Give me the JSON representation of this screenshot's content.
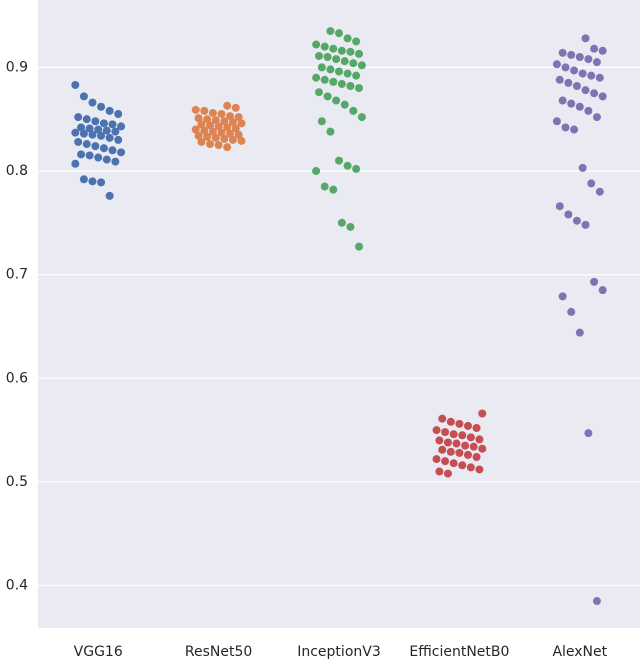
{
  "chart_data": {
    "type": "strip",
    "categories": [
      "VGG16",
      "ResNet50",
      "InceptionV3",
      "EfficientNetB0",
      "AlexNet"
    ],
    "colors": [
      "#4c72b0",
      "#dd8452",
      "#55a868",
      "#c44e52",
      "#8172b3"
    ],
    "values": [
      [
        0.883,
        0.872,
        0.866,
        0.862,
        0.858,
        0.855,
        0.852,
        0.85,
        0.848,
        0.846,
        0.845,
        0.843,
        0.842,
        0.841,
        0.84,
        0.839,
        0.838,
        0.837,
        0.836,
        0.835,
        0.834,
        0.832,
        0.83,
        0.828,
        0.826,
        0.824,
        0.822,
        0.82,
        0.818,
        0.816,
        0.815,
        0.813,
        0.811,
        0.809,
        0.807,
        0.792,
        0.79,
        0.789,
        0.776
      ],
      [
        0.863,
        0.861,
        0.859,
        0.858,
        0.856,
        0.855,
        0.853,
        0.852,
        0.851,
        0.85,
        0.849,
        0.848,
        0.847,
        0.846,
        0.845,
        0.844,
        0.843,
        0.842,
        0.841,
        0.84,
        0.839,
        0.838,
        0.837,
        0.836,
        0.835,
        0.834,
        0.833,
        0.832,
        0.831,
        0.83,
        0.829,
        0.828,
        0.826,
        0.825,
        0.823
      ],
      [
        0.935,
        0.933,
        0.928,
        0.925,
        0.922,
        0.92,
        0.918,
        0.916,
        0.915,
        0.913,
        0.911,
        0.91,
        0.908,
        0.906,
        0.904,
        0.902,
        0.9,
        0.898,
        0.896,
        0.894,
        0.892,
        0.89,
        0.888,
        0.886,
        0.884,
        0.882,
        0.88,
        0.876,
        0.872,
        0.868,
        0.864,
        0.858,
        0.852,
        0.848,
        0.838,
        0.81,
        0.805,
        0.802,
        0.8,
        0.785,
        0.782,
        0.75,
        0.746,
        0.727
      ],
      [
        0.566,
        0.561,
        0.558,
        0.556,
        0.554,
        0.552,
        0.55,
        0.548,
        0.546,
        0.545,
        0.543,
        0.541,
        0.54,
        0.538,
        0.537,
        0.535,
        0.534,
        0.532,
        0.531,
        0.529,
        0.528,
        0.526,
        0.524,
        0.522,
        0.52,
        0.518,
        0.516,
        0.514,
        0.512,
        0.51,
        0.508
      ],
      [
        0.928,
        0.918,
        0.916,
        0.914,
        0.912,
        0.91,
        0.908,
        0.905,
        0.903,
        0.9,
        0.897,
        0.894,
        0.892,
        0.89,
        0.888,
        0.885,
        0.882,
        0.878,
        0.875,
        0.872,
        0.868,
        0.865,
        0.862,
        0.858,
        0.852,
        0.848,
        0.842,
        0.84,
        0.803,
        0.788,
        0.78,
        0.766,
        0.758,
        0.752,
        0.748,
        0.693,
        0.685,
        0.679,
        0.664,
        0.644,
        0.547,
        0.385
      ]
    ],
    "ylim": [
      0.359,
      0.965
    ],
    "yticks": [
      0.4,
      0.5,
      0.6,
      0.7,
      0.8,
      0.9
    ],
    "grid": true
  }
}
